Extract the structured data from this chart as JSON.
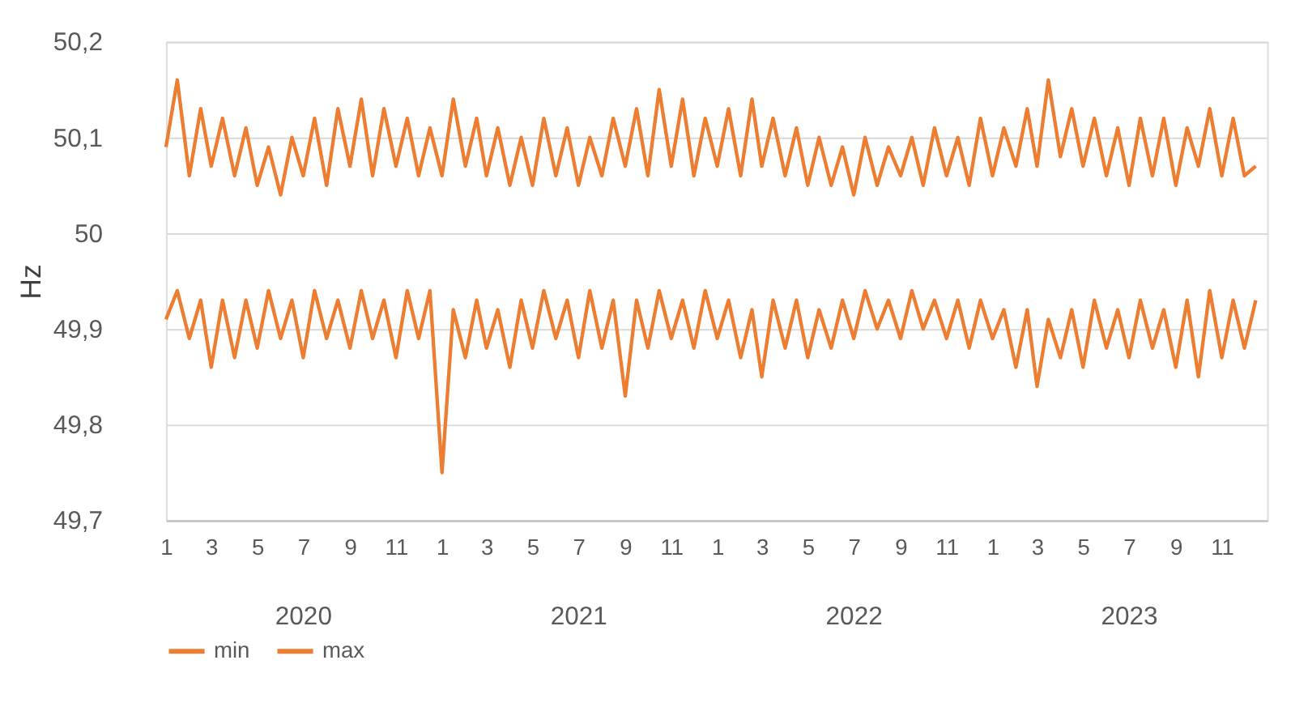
{
  "chart_data": {
    "type": "line",
    "ylabel": "Hz",
    "x": [
      "2020-01-01",
      "2020-01-16",
      "2020-02-01",
      "2020-02-16",
      "2020-03-01",
      "2020-03-16",
      "2020-04-01",
      "2020-04-16",
      "2020-05-01",
      "2020-05-16",
      "2020-06-01",
      "2020-06-16",
      "2020-07-01",
      "2020-07-16",
      "2020-08-01",
      "2020-08-16",
      "2020-09-01",
      "2020-09-16",
      "2020-10-01",
      "2020-10-16",
      "2020-11-01",
      "2020-11-16",
      "2020-12-01",
      "2020-12-16",
      "2021-01-01",
      "2021-01-16",
      "2021-02-01",
      "2021-02-16",
      "2021-03-01",
      "2021-03-16",
      "2021-04-01",
      "2021-04-16",
      "2021-05-01",
      "2021-05-16",
      "2021-06-01",
      "2021-06-16",
      "2021-07-01",
      "2021-07-16",
      "2021-08-01",
      "2021-08-16",
      "2021-09-01",
      "2021-09-16",
      "2021-10-01",
      "2021-10-16",
      "2021-11-01",
      "2021-11-16",
      "2021-12-01",
      "2021-12-16",
      "2022-01-01",
      "2022-01-16",
      "2022-02-01",
      "2022-02-16",
      "2022-03-01",
      "2022-03-16",
      "2022-04-01",
      "2022-04-16",
      "2022-05-01",
      "2022-05-16",
      "2022-06-01",
      "2022-06-16",
      "2022-07-01",
      "2022-07-16",
      "2022-08-01",
      "2022-08-16",
      "2022-09-01",
      "2022-09-16",
      "2022-10-01",
      "2022-10-16",
      "2022-11-01",
      "2022-11-16",
      "2022-12-01",
      "2022-12-16",
      "2023-01-01",
      "2023-01-16",
      "2023-02-01",
      "2023-02-16",
      "2023-03-01",
      "2023-03-16",
      "2023-04-01",
      "2023-04-16",
      "2023-05-01",
      "2023-05-16",
      "2023-06-01",
      "2023-06-16",
      "2023-07-01",
      "2023-07-16",
      "2023-08-01",
      "2023-08-16",
      "2023-09-01",
      "2023-09-16",
      "2023-10-01",
      "2023-10-16",
      "2023-11-01",
      "2023-11-16",
      "2023-12-01",
      "2023-12-16"
    ],
    "series": [
      {
        "name": "min",
        "color": "#ed7d31",
        "values": [
          49.91,
          49.94,
          49.89,
          49.93,
          49.86,
          49.93,
          49.87,
          49.93,
          49.88,
          49.94,
          49.89,
          49.93,
          49.87,
          49.94,
          49.89,
          49.93,
          49.88,
          49.94,
          49.89,
          49.93,
          49.87,
          49.94,
          49.89,
          49.94,
          49.75,
          49.92,
          49.87,
          49.93,
          49.88,
          49.92,
          49.86,
          49.93,
          49.88,
          49.94,
          49.89,
          49.93,
          49.87,
          49.94,
          49.88,
          49.93,
          49.83,
          49.93,
          49.88,
          49.94,
          49.89,
          49.93,
          49.88,
          49.94,
          49.89,
          49.93,
          49.87,
          49.92,
          49.85,
          49.93,
          49.88,
          49.93,
          49.87,
          49.92,
          49.88,
          49.93,
          49.89,
          49.94,
          49.9,
          49.93,
          49.89,
          49.94,
          49.9,
          49.93,
          49.89,
          49.93,
          49.88,
          49.93,
          49.89,
          49.92,
          49.86,
          49.92,
          49.84,
          49.91,
          49.87,
          49.92,
          49.86,
          49.93,
          49.88,
          49.92,
          49.87,
          49.93,
          49.88,
          49.92,
          49.86,
          49.93,
          49.85,
          49.94,
          49.87,
          49.93,
          49.88,
          49.93
        ]
      },
      {
        "name": "max",
        "color": "#ed7d31",
        "values": [
          50.09,
          50.16,
          50.06,
          50.13,
          50.07,
          50.12,
          50.06,
          50.11,
          50.05,
          50.09,
          50.04,
          50.1,
          50.06,
          50.12,
          50.05,
          50.13,
          50.07,
          50.14,
          50.06,
          50.13,
          50.07,
          50.12,
          50.06,
          50.11,
          50.06,
          50.14,
          50.07,
          50.12,
          50.06,
          50.11,
          50.05,
          50.1,
          50.05,
          50.12,
          50.06,
          50.11,
          50.05,
          50.1,
          50.06,
          50.12,
          50.07,
          50.13,
          50.06,
          50.15,
          50.07,
          50.14,
          50.06,
          50.12,
          50.07,
          50.13,
          50.06,
          50.14,
          50.07,
          50.12,
          50.06,
          50.11,
          50.05,
          50.1,
          50.05,
          50.09,
          50.04,
          50.1,
          50.05,
          50.09,
          50.06,
          50.1,
          50.05,
          50.11,
          50.06,
          50.1,
          50.05,
          50.12,
          50.06,
          50.11,
          50.07,
          50.13,
          50.07,
          50.16,
          50.08,
          50.13,
          50.07,
          50.12,
          50.06,
          50.11,
          50.05,
          50.12,
          50.06,
          50.12,
          50.05,
          50.11,
          50.07,
          50.13,
          50.06,
          50.12,
          50.06,
          50.07
        ]
      }
    ],
    "xlim": [
      "2020-01-01",
      "2023-12-31"
    ],
    "xticks": [
      {
        "value": "2020-01-01",
        "label": "1"
      },
      {
        "value": "2020-03-01",
        "label": "3"
      },
      {
        "value": "2020-05-01",
        "label": "5"
      },
      {
        "value": "2020-07-01",
        "label": "7"
      },
      {
        "value": "2020-09-01",
        "label": "9"
      },
      {
        "value": "2020-11-01",
        "label": "11"
      },
      {
        "value": "2021-01-01",
        "label": "1"
      },
      {
        "value": "2021-03-01",
        "label": "3"
      },
      {
        "value": "2021-05-01",
        "label": "5"
      },
      {
        "value": "2021-07-01",
        "label": "7"
      },
      {
        "value": "2021-09-01",
        "label": "9"
      },
      {
        "value": "2021-11-01",
        "label": "11"
      },
      {
        "value": "2022-01-01",
        "label": "1"
      },
      {
        "value": "2022-03-01",
        "label": "3"
      },
      {
        "value": "2022-05-01",
        "label": "5"
      },
      {
        "value": "2022-07-01",
        "label": "7"
      },
      {
        "value": "2022-09-01",
        "label": "9"
      },
      {
        "value": "2022-11-01",
        "label": "11"
      },
      {
        "value": "2023-01-01",
        "label": "1"
      },
      {
        "value": "2023-03-01",
        "label": "3"
      },
      {
        "value": "2023-05-01",
        "label": "5"
      },
      {
        "value": "2023-07-01",
        "label": "7"
      },
      {
        "value": "2023-09-01",
        "label": "9"
      },
      {
        "value": "2023-11-01",
        "label": "11"
      }
    ],
    "annotations": [
      "2020",
      "2021",
      "2022",
      "2023"
    ],
    "ylim": [
      49.7,
      50.2
    ],
    "yticks": [
      {
        "value": 49.7,
        "label": "49,7"
      },
      {
        "value": 49.8,
        "label": "49,8"
      },
      {
        "value": 49.9,
        "label": "49,9"
      },
      {
        "value": 50,
        "label": "50"
      },
      {
        "value": 50.1,
        "label": "50,1"
      },
      {
        "value": 50.2,
        "label": "50,2"
      }
    ],
    "grid": "y",
    "legend": "bottom",
    "line_style": "solid",
    "marker": "none"
  }
}
